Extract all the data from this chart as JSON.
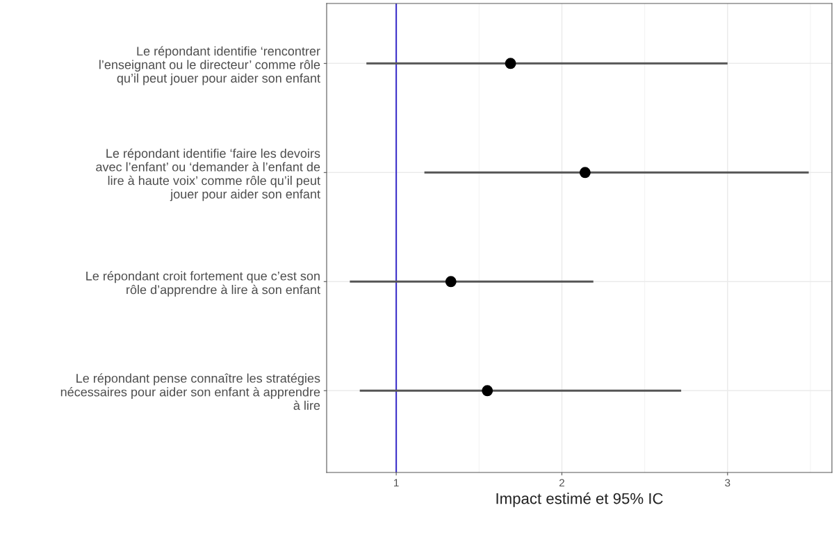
{
  "chart_data": {
    "type": "scatter",
    "orientation": "horizontal",
    "categories": [
      "Le répondant identifie ‘rencontrer\nl’enseignant ou le directeur’ comme rôle\nqu’il peut jouer pour aider son enfant",
      "Le répondant identifie ‘faire les devoirs\navec l’enfant’ ou ‘demander à l’enfant de\nlire à haute voix’ comme rôle qu’il peut\njouer pour aider son enfant",
      "Le répondant croit fortement que c’est son\nrôle d’apprendre à lire à son enfant",
      "Le répondant pense connaître les stratégies\nnécessaires pour aider son enfant à apprendre\nà lire"
    ],
    "values": [
      1.69,
      2.14,
      1.33,
      1.55
    ],
    "errors": [
      [
        0.82,
        3.0
      ],
      [
        1.17,
        3.49
      ],
      [
        0.72,
        2.19
      ],
      [
        0.78,
        2.72
      ]
    ],
    "color": "#000000",
    "xlabel": "Impact estimé et 95% IC",
    "xlim": [
      0.58,
      3.63
    ],
    "xticks": [
      1,
      2,
      3
    ],
    "ref_lines": [
      {
        "axis": "x",
        "value": 1,
        "color": "#3b2fc9"
      }
    ],
    "grid": true,
    "marker": "circle"
  }
}
